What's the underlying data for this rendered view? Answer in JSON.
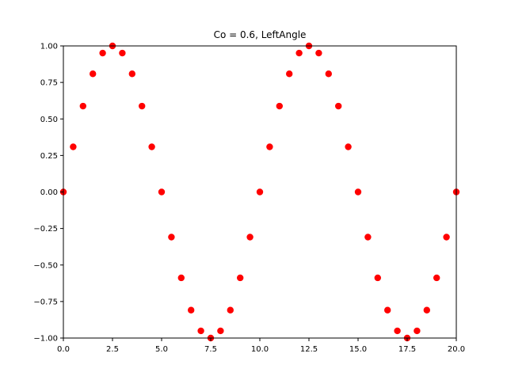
{
  "chart_data": {
    "type": "scatter",
    "title": "Co = 0.6, LeftAngle",
    "xlabel": "",
    "ylabel": "",
    "xlim": [
      0,
      20
    ],
    "ylim": [
      -1,
      1
    ],
    "grid": false,
    "x_ticks": [
      "0.0",
      "2.5",
      "5.0",
      "7.5",
      "10.0",
      "12.5",
      "15.0",
      "17.5",
      "20.0"
    ],
    "y_ticks": [
      "−1.00",
      "−0.75",
      "−0.50",
      "−0.25",
      "0.00",
      "0.25",
      "0.50",
      "0.75",
      "1.00"
    ],
    "marker_color": "#ff0000",
    "series": [
      {
        "x": [
          0,
          0.5,
          1,
          1.5,
          2,
          2.5,
          3,
          3.5,
          4,
          4.5,
          5,
          5.5,
          6,
          6.5,
          7,
          7.5,
          8,
          8.5,
          9,
          9.5,
          10,
          10.5,
          11,
          11.5,
          12,
          12.5,
          13,
          13.5,
          14,
          14.5,
          15,
          15.5,
          16,
          16.5,
          17,
          17.5,
          18,
          18.5,
          19,
          19.5,
          20
        ],
        "y": [
          0,
          0.309,
          0.588,
          0.809,
          0.951,
          1,
          0.951,
          0.809,
          0.588,
          0.309,
          0,
          -0.309,
          -0.588,
          -0.809,
          -0.951,
          -1,
          -0.951,
          -0.809,
          -0.588,
          -0.309,
          0,
          0.309,
          0.588,
          0.809,
          0.951,
          1,
          0.951,
          0.809,
          0.588,
          0.309,
          0,
          -0.309,
          -0.588,
          -0.809,
          -0.951,
          -1,
          -0.951,
          -0.809,
          -0.588,
          -0.309,
          0
        ]
      }
    ]
  }
}
